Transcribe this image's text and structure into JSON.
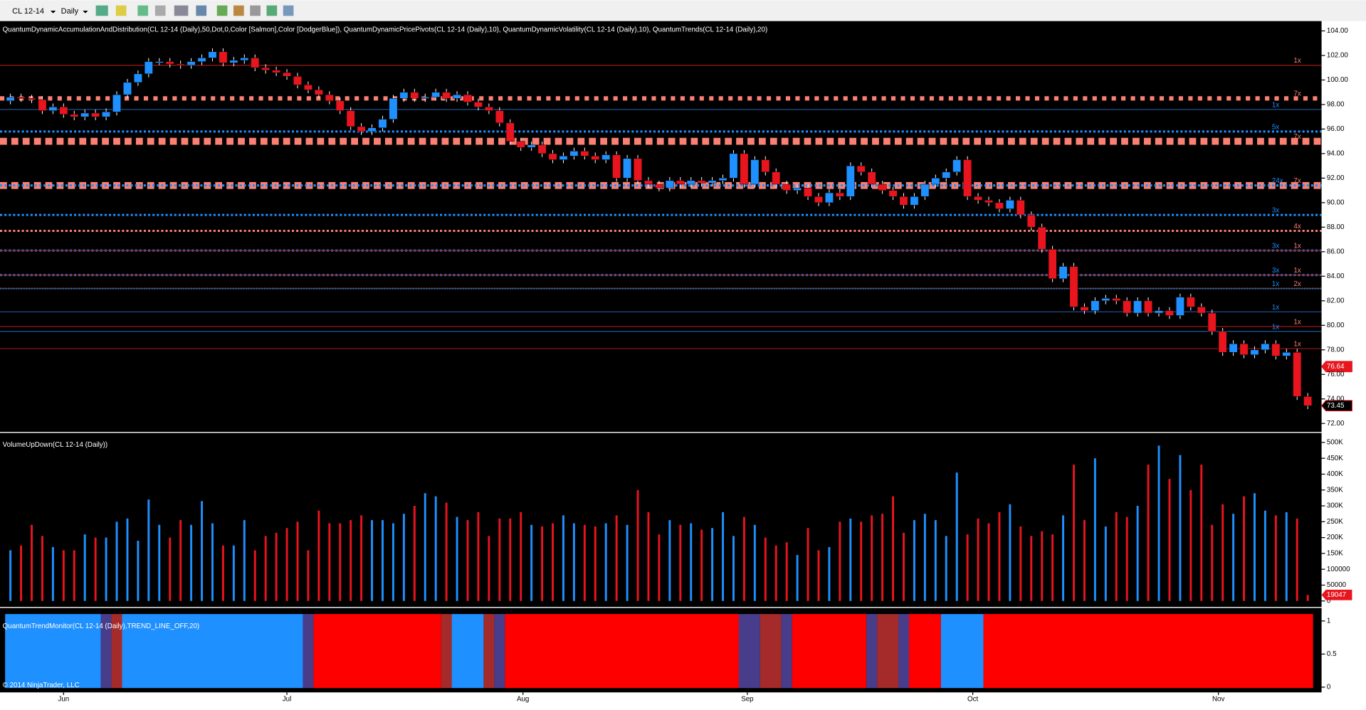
{
  "toolbar": {
    "instrument": "CL 12-14",
    "interval": "Daily"
  },
  "copyright": "© 2014 NinjaTrader, LLC",
  "chart_data": [
    {
      "type": "candlestick",
      "title": "QuantumDynamicAccumulationAndDistribution(CL 12-14 (Daily),50,Dot,0,Color [Salmon],Color [DodgerBlue]), QuantumDynamicPricePivots(CL 12-14 (Daily),10), QuantumDynamicVolatility(CL 12-14 (Daily),10), QuantumTrends(CL 12-14 (Daily),20)",
      "open": [
        98.3,
        98.6,
        98.5,
        98.4,
        97.5,
        97.8,
        97.2,
        97.0,
        97.3,
        97.0,
        97.4,
        98.8,
        99.8,
        100.5,
        101.5,
        101.5,
        101.3,
        101.2,
        101.5,
        101.8,
        102.3,
        101.4,
        101.6,
        101.8,
        101.0,
        100.8,
        100.6,
        100.3,
        99.6,
        99.2,
        98.8,
        98.3,
        97.5,
        96.2,
        95.8,
        96.1,
        96.8,
        98.5,
        99.0,
        98.5,
        98.6,
        99.0,
        98.5,
        98.8,
        98.2,
        97.8,
        97.5,
        96.5,
        95.0,
        94.5,
        94.7,
        94.0,
        93.5,
        93.8,
        94.2,
        93.8,
        93.5,
        93.9,
        92.0,
        93.6,
        91.8,
        91.5,
        91.2,
        91.8,
        91.5,
        91.8,
        91.6,
        91.8,
        92.0,
        94.0,
        91.5,
        93.5,
        92.5,
        91.5,
        91.0,
        91.2,
        90.5,
        90.0,
        90.8,
        90.5,
        93.0,
        92.5,
        91.5,
        91.0,
        90.5,
        89.8,
        90.5,
        91.5,
        92.0,
        92.5,
        93.5,
        90.5,
        90.2,
        90.0,
        89.5,
        90.2,
        89.0,
        88.0,
        86.2,
        83.8,
        84.8,
        81.5,
        81.2,
        82.0,
        82.2,
        82.0,
        81.0,
        82.0,
        81.0,
        81.2,
        80.8,
        82.3,
        81.5,
        81.0,
        79.5,
        77.8,
        78.5,
        77.6,
        78.0,
        78.5,
        77.5,
        77.8,
        74.2
      ],
      "close": [
        98.6,
        98.5,
        98.4,
        97.5,
        97.8,
        97.2,
        97.0,
        97.3,
        97.0,
        97.4,
        98.8,
        99.8,
        100.5,
        101.5,
        101.5,
        101.3,
        101.2,
        101.5,
        101.8,
        102.3,
        101.4,
        101.6,
        101.8,
        101.0,
        100.8,
        100.6,
        100.3,
        99.6,
        99.2,
        98.8,
        98.3,
        97.5,
        96.2,
        95.8,
        96.1,
        96.8,
        98.5,
        99.0,
        98.5,
        98.6,
        99.0,
        98.5,
        98.8,
        98.2,
        97.8,
        97.5,
        96.5,
        95.0,
        94.5,
        94.7,
        94.0,
        93.5,
        93.8,
        94.2,
        93.8,
        93.5,
        93.9,
        92.0,
        93.6,
        91.8,
        91.5,
        91.2,
        91.8,
        91.5,
        91.8,
        91.6,
        91.8,
        92.0,
        94.0,
        91.5,
        93.5,
        92.5,
        91.5,
        91.0,
        91.2,
        90.5,
        90.0,
        90.8,
        90.5,
        93.0,
        92.5,
        91.5,
        91.0,
        90.5,
        89.8,
        90.5,
        91.5,
        92.0,
        92.5,
        93.5,
        90.5,
        90.2,
        90.0,
        89.5,
        90.2,
        89.0,
        88.0,
        86.2,
        83.8,
        84.8,
        81.5,
        81.2,
        82.0,
        82.2,
        82.0,
        81.0,
        82.0,
        81.0,
        81.2,
        80.8,
        82.3,
        81.5,
        81.0,
        79.5,
        77.8,
        78.5,
        77.6,
        78.0,
        78.5,
        77.5,
        77.8,
        74.2,
        73.45
      ],
      "up_color": "#1e90ff",
      "down_color": "#e8141e",
      "xlim": [
        -0.98,
        123.3
      ],
      "xticks": [
        {
          "value": 5,
          "label": "Jun"
        },
        {
          "value": 26,
          "label": "Jul"
        },
        {
          "value": 48.2,
          "label": "Aug"
        },
        {
          "value": 69.3,
          "label": "Sep"
        },
        {
          "value": 90.5,
          "label": "Oct"
        },
        {
          "value": 113.6,
          "label": "Nov"
        }
      ],
      "ylim": [
        71.3,
        104.8
      ],
      "yticks": [
        {
          "value": 72,
          "label": "72.00"
        },
        {
          "value": 74,
          "label": "74.00"
        },
        {
          "value": 76,
          "label": "76.00"
        },
        {
          "value": 78,
          "label": "78.00"
        },
        {
          "value": 80,
          "label": "80.00"
        },
        {
          "value": 82,
          "label": "82.00"
        },
        {
          "value": 84,
          "label": "84.00"
        },
        {
          "value": 86,
          "label": "86.00"
        },
        {
          "value": 88,
          "label": "88.00"
        },
        {
          "value": 90,
          "label": "90.00"
        },
        {
          "value": 92,
          "label": "92.00"
        },
        {
          "value": 94,
          "label": "94.00"
        },
        {
          "value": 96,
          "label": "96.00"
        },
        {
          "value": 98,
          "label": "98.00"
        },
        {
          "value": 100,
          "label": "100.00"
        },
        {
          "value": 102,
          "label": "102.00"
        },
        {
          "value": 104,
          "label": "104.00"
        }
      ],
      "levels": [
        {
          "value": 101.2,
          "color": "#a01818",
          "style": "thin",
          "label": "1x"
        },
        {
          "value": 98.5,
          "color": "#fa8072",
          "style": "dots-medium",
          "label": "7x"
        },
        {
          "value": 97.6,
          "color": "#1e5aa0",
          "style": "thin",
          "label": "1x"
        },
        {
          "value": 95.8,
          "color": "#1e90ff",
          "style": "dotted",
          "label": "5x"
        },
        {
          "value": 95.0,
          "color": "#fa8072",
          "style": "dots-large",
          "label": "7x"
        },
        {
          "value": 91.4,
          "color": "#fa8072",
          "style": "dots-large",
          "label": "7x"
        },
        {
          "value": 91.4,
          "color": "#1e90ff",
          "style": "dotted",
          "label": "24x"
        },
        {
          "value": 89.0,
          "color": "#1e90ff",
          "style": "dotted",
          "label": "3x"
        },
        {
          "value": 87.7,
          "color": "#fa8072",
          "style": "dotted",
          "label": "4x"
        },
        {
          "value": 86.1,
          "color": "#1e90ff",
          "style": "dotted",
          "label": "3x"
        },
        {
          "value": 86.1,
          "color": "#a01818",
          "style": "thin",
          "label": "1x"
        },
        {
          "value": 84.1,
          "color": "#1e90ff",
          "style": "dotted",
          "label": "3x"
        },
        {
          "value": 84.1,
          "color": "#a01818",
          "style": "thin",
          "label": "1x"
        },
        {
          "value": 83.0,
          "color": "#fa8072",
          "style": "fine",
          "label": "2x"
        },
        {
          "value": 83.0,
          "color": "#1e5aa0",
          "style": "thin",
          "label": "1x"
        },
        {
          "value": 81.1,
          "color": "#1e5aa0",
          "style": "thin",
          "label": "1x"
        },
        {
          "value": 79.9,
          "color": "#a01818",
          "style": "thin",
          "label": "1x"
        },
        {
          "value": 79.5,
          "color": "#1e5aa0",
          "style": "thin",
          "label": "1x"
        },
        {
          "value": 78.1,
          "color": "#a01818",
          "style": "thin",
          "label": "1x"
        }
      ],
      "last_labels": [
        {
          "value": 76.64,
          "color": "#e8141e"
        },
        {
          "value": 73.45,
          "color": "#000000"
        }
      ]
    },
    {
      "type": "volume",
      "title": "VolumeUpDown(CL 12-14 (Daily))",
      "values": [
        160000,
        175000,
        240000,
        205000,
        170000,
        160000,
        160000,
        210000,
        200000,
        200000,
        250000,
        260000,
        190000,
        320000,
        240000,
        200000,
        255000,
        240000,
        315000,
        245000,
        175000,
        175000,
        255000,
        160000,
        205000,
        215000,
        230000,
        250000,
        160000,
        285000,
        245000,
        245000,
        255000,
        270000,
        255000,
        255000,
        245000,
        275000,
        300000,
        340000,
        330000,
        310000,
        265000,
        255000,
        280000,
        205000,
        260000,
        260000,
        280000,
        240000,
        235000,
        245000,
        270000,
        245000,
        240000,
        235000,
        245000,
        270000,
        240000,
        350000,
        280000,
        210000,
        255000,
        240000,
        245000,
        225000,
        230000,
        280000,
        205000,
        265000,
        240000,
        200000,
        175000,
        185000,
        145000,
        230000,
        160000,
        170000,
        250000,
        260000,
        250000,
        270000,
        275000,
        330000,
        215000,
        255000,
        275000,
        255000,
        205000,
        405000,
        210000,
        260000,
        245000,
        280000,
        305000,
        235000,
        205000,
        220000,
        210000,
        270000,
        430000,
        255000,
        450000,
        235000,
        280000,
        265000,
        300000,
        430000,
        490000,
        385000,
        460000,
        350000,
        430000,
        240000,
        305000,
        275000,
        330000,
        340000,
        285000,
        270000,
        280000,
        260000,
        19047
      ],
      "ylim": [
        0,
        530000
      ],
      "yticks": [
        0,
        50000,
        100000,
        {
          "value": 150000,
          "label": "150K"
        },
        {
          "value": 200000,
          "label": "200K"
        },
        {
          "value": 250000,
          "label": "250K"
        },
        {
          "value": 300000,
          "label": "300K"
        },
        {
          "value": 350000,
          "label": "350K"
        },
        {
          "value": 400000,
          "label": "400K"
        },
        {
          "value": 450000,
          "label": "450K"
        },
        {
          "value": 500000,
          "label": "500K"
        }
      ]
    },
    {
      "type": "trend",
      "title": "QuantumTrendMonitor(CL 12-14 (Daily),TREND_LINE_OFF,20)",
      "segments": [
        {
          "from": 0,
          "to": 8,
          "color": "#1e90ff"
        },
        {
          "from": 9,
          "to": 9,
          "color": "#483d8b"
        },
        {
          "from": 10,
          "to": 10,
          "color": "#a52a2a"
        },
        {
          "from": 11,
          "to": 27,
          "color": "#1e90ff"
        },
        {
          "from": 28,
          "to": 28,
          "color": "#483d8b"
        },
        {
          "from": 29,
          "to": 40,
          "color": "#ff0000"
        },
        {
          "from": 41,
          "to": 41,
          "color": "#a52a2a"
        },
        {
          "from": 42,
          "to": 44,
          "color": "#1e90ff"
        },
        {
          "from": 45,
          "to": 45,
          "color": "#a52a2a"
        },
        {
          "from": 46,
          "to": 46,
          "color": "#483d8b"
        },
        {
          "from": 47,
          "to": 68,
          "color": "#ff0000"
        },
        {
          "from": 69,
          "to": 70,
          "color": "#483d8b"
        },
        {
          "from": 71,
          "to": 72,
          "color": "#a52a2a"
        },
        {
          "from": 73,
          "to": 73,
          "color": "#483d8b"
        },
        {
          "from": 74,
          "to": 80,
          "color": "#ff0000"
        },
        {
          "from": 81,
          "to": 81,
          "color": "#483d8b"
        },
        {
          "from": 82,
          "to": 83,
          "color": "#a52a2a"
        },
        {
          "from": 84,
          "to": 84,
          "color": "#483d8b"
        },
        {
          "from": 85,
          "to": 87,
          "color": "#ff0000"
        },
        {
          "from": 88,
          "to": 91,
          "color": "#1e90ff"
        },
        {
          "from": 92,
          "to": 122,
          "color": "#ff0000"
        }
      ],
      "ylim": [
        -0.013,
        1.105
      ],
      "yticks": [
        0,
        0.5,
        1
      ]
    }
  ]
}
